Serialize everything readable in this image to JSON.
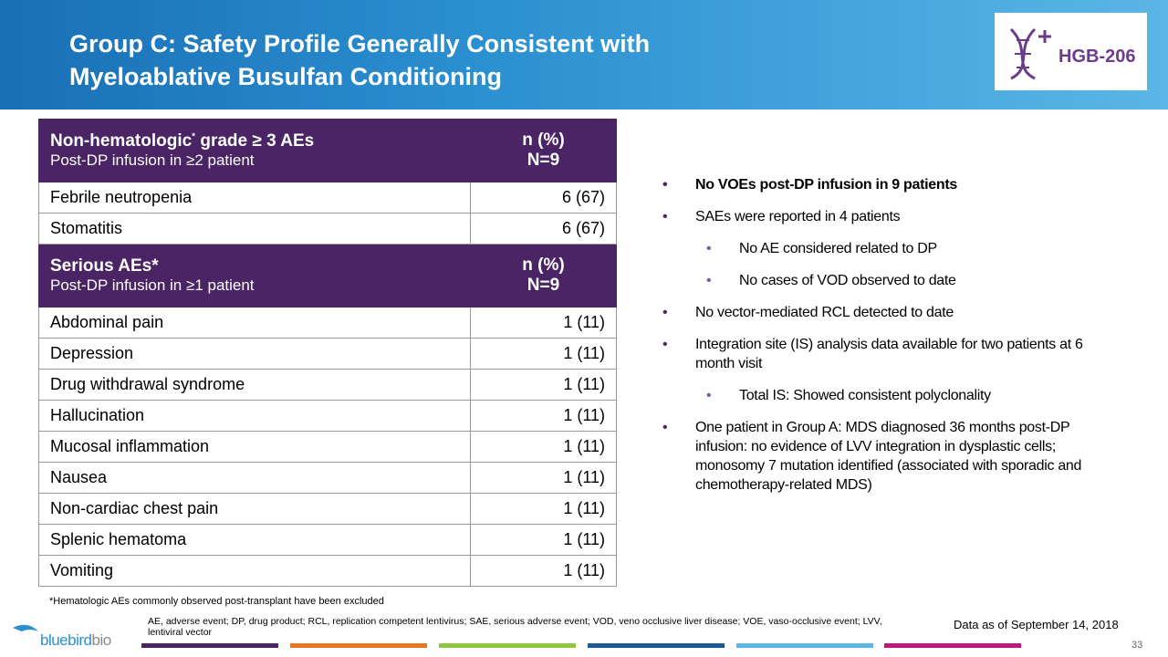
{
  "header": {
    "title_line1": "Group C: Safety Profile Generally Consistent with",
    "title_line2": "Myeloablative Busulfan Conditioning",
    "badge": "HGB-206"
  },
  "table": {
    "sections": [
      {
        "heading": {
          "title": "Non-hematologic",
          "title_mark": "*",
          "title_rest": " grade ≥ 3 AEs",
          "subtitle": "Post-DP infusion in ≥2 patient",
          "col_line1": "n (%)",
          "col_line2": "N=9"
        },
        "rows": [
          [
            "Febrile neutropenia",
            "6 (67)"
          ],
          [
            "Stomatitis",
            "6 (67)"
          ]
        ]
      },
      {
        "heading": {
          "title": "Serious AEs*",
          "title_mark": null,
          "title_rest": null,
          "subtitle": "Post-DP infusion in ≥1 patient",
          "col_line1": "n (%)",
          "col_line2": "N=9"
        },
        "rows": [
          [
            "Abdominal  pain",
            "1 (11)"
          ],
          [
            "Depression",
            "1 (11)"
          ],
          [
            "Drug withdrawal syndrome",
            "1 (11)"
          ],
          [
            "Hallucination",
            "1 (11)"
          ],
          [
            "Mucosal inflammation",
            "1 (11)"
          ],
          [
            "Nausea",
            "1 (11)"
          ],
          [
            "Non-cardiac chest pain",
            "1 (11)"
          ],
          [
            "Splenic hematoma",
            "1 (11)"
          ],
          [
            "Vomiting",
            "1 (11)"
          ]
        ]
      }
    ]
  },
  "footnote": "*Hematologic AEs commonly observed post-transplant have been excluded",
  "bullets": [
    {
      "text": "No VOEs post-DP infusion in 9 patients",
      "level": 1,
      "bold": true
    },
    {
      "text": "SAEs were reported in 4 patients",
      "level": 1,
      "bold": false
    },
    {
      "text": "No AE considered related to DP",
      "level": 2,
      "bold": false
    },
    {
      "text": "No cases of VOD observed to date",
      "level": 2,
      "bold": false
    },
    {
      "text": "No vector-mediated RCL detected to date",
      "level": 1,
      "bold": false
    },
    {
      "text": "Integration site (IS) analysis data available for two patients at 6 month visit",
      "level": 1,
      "bold": false
    },
    {
      "text": "Total IS: Showed consistent polyclonality",
      "level": 2,
      "bold": false
    },
    {
      "text": "One patient in Group A:  MDS diagnosed 36 months post-DP infusion: no evidence of LVV integration in dysplastic cells; monosomy 7 mutation identified (associated with sporadic and chemotherapy-related MDS)",
      "level": 1,
      "bold": false
    }
  ],
  "abbreviations": "AE,  adverse event; DP, drug product; RCL, replication competent lentivirus; SAE, serious adverse event; VOD, veno occlusive liver disease; VOE, vaso-occlusive event; LVV,  lentiviral vector",
  "data_as_of": "Data as of September 14, 2018",
  "logo": {
    "part1": "bluebird",
    "part2": "bio"
  },
  "page_number": "33"
}
